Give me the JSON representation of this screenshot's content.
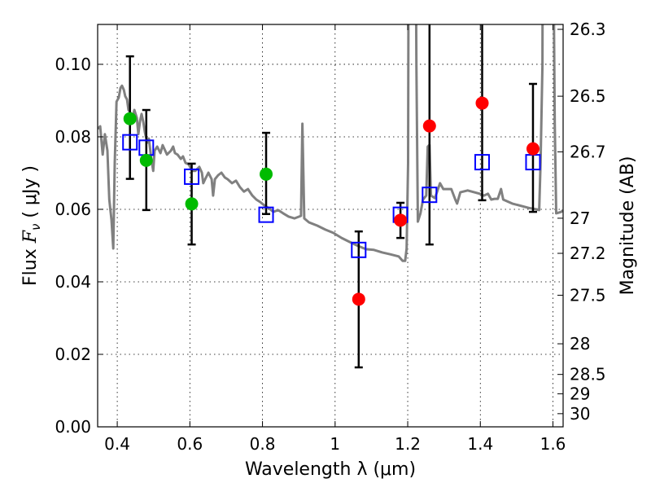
{
  "chart_data": {
    "type": "scatter",
    "xlabel": "Wavelength  λ (μm)",
    "ylabel": "Flux  F_ν  ( μJy )",
    "ylabel_parts": {
      "pre": "Flux  ",
      "var": "F",
      "sub": "ν",
      "post": "  ( μJy )"
    },
    "y2label": "Magnitude (AB)",
    "xlim": [
      0.346,
      1.628
    ],
    "ylim": [
      0.0,
      0.111
    ],
    "grid": true,
    "x_ticks": [
      0.4,
      0.6,
      0.8,
      1.0,
      1.2,
      1.4,
      1.6
    ],
    "x_tick_labels": [
      "0.4",
      "0.6",
      "0.8",
      "1",
      "1.2",
      "1.4",
      "1.6"
    ],
    "y_ticks": [
      0.0,
      0.02,
      0.04,
      0.06,
      0.08,
      0.1
    ],
    "y_tick_labels": [
      "0.00",
      "0.02",
      "0.04",
      "0.06",
      "0.08",
      "0.10"
    ],
    "y2_ticks": [
      26.3,
      26.5,
      26.7,
      27,
      27.2,
      27.5,
      28,
      28.5,
      29,
      30
    ],
    "y2_tick_labels": [
      "26.3",
      "26.5",
      "26.7",
      "27",
      "27.2",
      "27.5",
      "28",
      "28.5",
      "29",
      "30"
    ],
    "colors": {
      "spectrum": "#808080",
      "green": "#00bb00",
      "red": "#ff0000",
      "model": "#0000ff",
      "error": "#000000"
    },
    "series": [
      {
        "name": "spectrum",
        "kind": "line",
        "points": [
          [
            0.346,
            0.0822
          ],
          [
            0.353,
            0.0829
          ],
          [
            0.36,
            0.0751
          ],
          [
            0.366,
            0.0807
          ],
          [
            0.373,
            0.0762
          ],
          [
            0.378,
            0.0627
          ],
          [
            0.384,
            0.0571
          ],
          [
            0.389,
            0.0492
          ],
          [
            0.393,
            0.0728
          ],
          [
            0.398,
            0.0897
          ],
          [
            0.404,
            0.0908
          ],
          [
            0.409,
            0.0935
          ],
          [
            0.413,
            0.0941
          ],
          [
            0.418,
            0.093
          ],
          [
            0.422,
            0.0912
          ],
          [
            0.427,
            0.0903
          ],
          [
            0.431,
            0.0874
          ],
          [
            0.436,
            0.0867
          ],
          [
            0.44,
            0.084
          ],
          [
            0.447,
            0.0874
          ],
          [
            0.454,
            0.0852
          ],
          [
            0.458,
            0.0807
          ],
          [
            0.463,
            0.0845
          ],
          [
            0.467,
            0.0863
          ],
          [
            0.472,
            0.084
          ],
          [
            0.476,
            0.0813
          ],
          [
            0.483,
            0.0784
          ],
          [
            0.487,
            0.0795
          ],
          [
            0.494,
            0.0739
          ],
          [
            0.499,
            0.0706
          ],
          [
            0.503,
            0.0762
          ],
          [
            0.51,
            0.0773
          ],
          [
            0.519,
            0.0755
          ],
          [
            0.525,
            0.0777
          ],
          [
            0.537,
            0.0751
          ],
          [
            0.548,
            0.0762
          ],
          [
            0.554,
            0.0773
          ],
          [
            0.559,
            0.0755
          ],
          [
            0.566,
            0.0751
          ],
          [
            0.575,
            0.0739
          ],
          [
            0.581,
            0.0746
          ],
          [
            0.588,
            0.0728
          ],
          [
            0.597,
            0.0724
          ],
          [
            0.606,
            0.0706
          ],
          [
            0.615,
            0.0706
          ],
          [
            0.626,
            0.0717
          ],
          [
            0.633,
            0.0701
          ],
          [
            0.637,
            0.0672
          ],
          [
            0.642,
            0.0683
          ],
          [
            0.651,
            0.0701
          ],
          [
            0.66,
            0.0683
          ],
          [
            0.664,
            0.0638
          ],
          [
            0.669,
            0.0683
          ],
          [
            0.678,
            0.0694
          ],
          [
            0.687,
            0.0701
          ],
          [
            0.696,
            0.0688
          ],
          [
            0.704,
            0.0683
          ],
          [
            0.716,
            0.0672
          ],
          [
            0.727,
            0.0679
          ],
          [
            0.738,
            0.0661
          ],
          [
            0.749,
            0.0649
          ],
          [
            0.76,
            0.0656
          ],
          [
            0.772,
            0.0638
          ],
          [
            0.783,
            0.0627
          ],
          [
            0.794,
            0.062
          ],
          [
            0.805,
            0.0611
          ],
          [
            0.816,
            0.0604
          ],
          [
            0.83,
            0.0593
          ],
          [
            0.843,
            0.0598
          ],
          [
            0.857,
            0.0589
          ],
          [
            0.872,
            0.058
          ],
          [
            0.888,
            0.0575
          ],
          [
            0.906,
            0.0582
          ],
          [
            0.91,
            0.0836
          ],
          [
            0.915,
            0.0575
          ],
          [
            0.928,
            0.0564
          ],
          [
            0.951,
            0.0555
          ],
          [
            0.973,
            0.0544
          ],
          [
            0.995,
            0.0535
          ],
          [
            1.018,
            0.0521
          ],
          [
            1.04,
            0.051
          ],
          [
            1.063,
            0.0499
          ],
          [
            1.085,
            0.049
          ],
          [
            1.107,
            0.0488
          ],
          [
            1.13,
            0.0481
          ],
          [
            1.152,
            0.0476
          ],
          [
            1.175,
            0.047
          ],
          [
            1.186,
            0.0458
          ],
          [
            1.193,
            0.0458
          ],
          [
            1.197,
            0.0492
          ],
          [
            1.201,
            0.0728
          ],
          [
            1.204,
            0.2
          ],
          [
            1.219,
            0.2
          ],
          [
            1.224,
            0.1
          ],
          [
            1.228,
            0.0566
          ],
          [
            1.235,
            0.0589
          ],
          [
            1.242,
            0.0627
          ],
          [
            1.251,
            0.0638
          ],
          [
            1.255,
            0.0773
          ],
          [
            1.26,
            0.0778
          ],
          [
            1.264,
            0.0638
          ],
          [
            1.275,
            0.0631
          ],
          [
            1.289,
            0.0672
          ],
          [
            1.298,
            0.0656
          ],
          [
            1.32,
            0.0656
          ],
          [
            1.331,
            0.0627
          ],
          [
            1.336,
            0.0616
          ],
          [
            1.345,
            0.0647
          ],
          [
            1.365,
            0.0652
          ],
          [
            1.398,
            0.0643
          ],
          [
            1.41,
            0.0638
          ],
          [
            1.421,
            0.0643
          ],
          [
            1.43,
            0.0627
          ],
          [
            1.439,
            0.0629
          ],
          [
            1.448,
            0.0629
          ],
          [
            1.457,
            0.0656
          ],
          [
            1.463,
            0.0627
          ],
          [
            1.488,
            0.0616
          ],
          [
            1.533,
            0.0604
          ],
          [
            1.555,
            0.06
          ],
          [
            1.562,
            0.0598
          ],
          [
            1.566,
            0.0728
          ],
          [
            1.571,
            0.0998
          ],
          [
            1.573,
            0.2
          ],
          [
            1.596,
            0.2
          ],
          [
            1.605,
            0.084
          ],
          [
            1.609,
            0.0589
          ],
          [
            1.623,
            0.0593
          ],
          [
            1.628,
            0.0598
          ]
        ]
      },
      {
        "name": "error-bars",
        "kind": "errorbar",
        "points": [
          {
            "x": 0.435,
            "lo": 0.0684,
            "hi": 0.1022
          },
          {
            "x": 0.48,
            "lo": 0.0598,
            "hi": 0.0874
          },
          {
            "x": 0.605,
            "lo": 0.0503,
            "hi": 0.0726
          },
          {
            "x": 0.81,
            "lo": 0.0587,
            "hi": 0.0811
          },
          {
            "x": 1.065,
            "lo": 0.0164,
            "hi": 0.0539
          },
          {
            "x": 1.18,
            "lo": 0.0521,
            "hi": 0.0618
          },
          {
            "x": 1.26,
            "lo": 0.0503,
            "hi": 0.2
          },
          {
            "x": 1.405,
            "lo": 0.0625,
            "hi": 0.2
          },
          {
            "x": 1.545,
            "lo": 0.0593,
            "hi": 0.0946
          }
        ]
      },
      {
        "name": "model-photometry",
        "kind": "square",
        "color_key": "model",
        "points": [
          [
            0.435,
            0.0785
          ],
          [
            0.48,
            0.077
          ],
          [
            0.605,
            0.069
          ],
          [
            0.81,
            0.0585
          ],
          [
            1.065,
            0.0488
          ],
          [
            1.18,
            0.0585
          ],
          [
            1.26,
            0.064
          ],
          [
            1.405,
            0.073
          ],
          [
            1.545,
            0.073
          ]
        ]
      },
      {
        "name": "observed-optical",
        "kind": "circle",
        "color_key": "green",
        "points": [
          [
            0.435,
            0.085
          ],
          [
            0.48,
            0.0735
          ],
          [
            0.605,
            0.0615
          ],
          [
            0.81,
            0.0697
          ]
        ]
      },
      {
        "name": "observed-nir",
        "kind": "circle",
        "color_key": "red",
        "points": [
          [
            1.065,
            0.0352
          ],
          [
            1.18,
            0.057
          ],
          [
            1.26,
            0.083
          ],
          [
            1.405,
            0.0893
          ],
          [
            1.545,
            0.0767
          ]
        ]
      }
    ]
  }
}
